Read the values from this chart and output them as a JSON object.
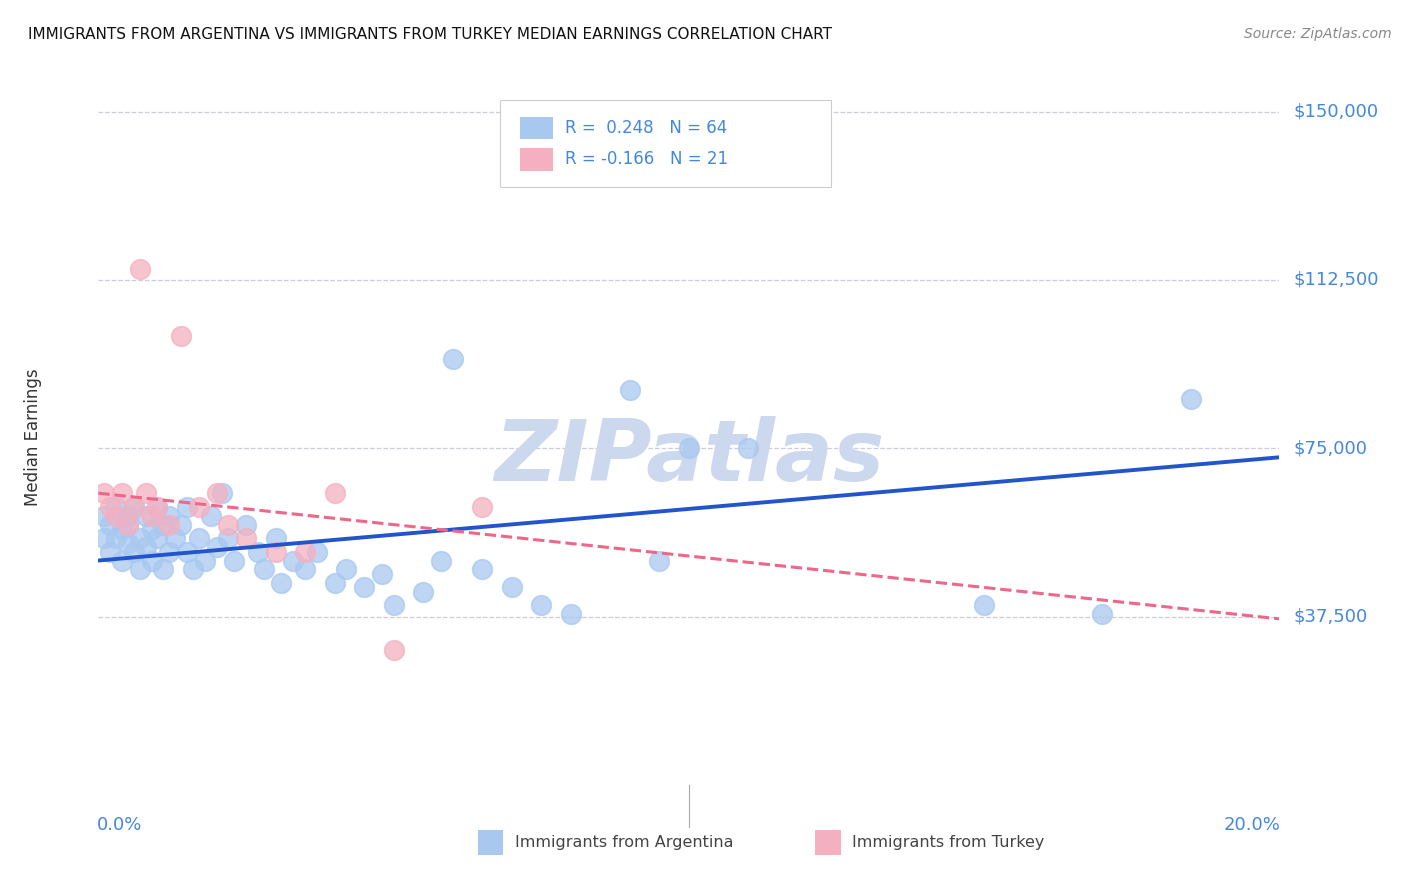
{
  "title": "IMMIGRANTS FROM ARGENTINA VS IMMIGRANTS FROM TURKEY MEDIAN EARNINGS CORRELATION CHART",
  "source": "Source: ZipAtlas.com",
  "ylabel": "Median Earnings",
  "ytick_vals": [
    0,
    37500,
    75000,
    112500,
    150000
  ],
  "ytick_labels": [
    "",
    "$37,500",
    "$75,000",
    "$112,500",
    "$150,000"
  ],
  "xlim": [
    0.0,
    0.2
  ],
  "ylim": [
    0,
    155000
  ],
  "argentina_R": 0.248,
  "argentina_N": 64,
  "turkey_R": -0.166,
  "turkey_N": 21,
  "blue_color": "#a8c8f0",
  "pink_color": "#f4b0c0",
  "blue_line_color": "#2255cc",
  "pink_line_color": "#ee6688",
  "grid_color": "#ccccdd",
  "watermark_color": "#ccd8ee",
  "axis_label_color": "#4488dd",
  "title_color": "#111111",
  "source_color": "#888888",
  "legend_border_color": "#cccccc",
  "bottom_text_color": "#444444",
  "arg_line_y0": 50000,
  "arg_line_y1": 73000,
  "turk_line_y0": 65000,
  "turk_line_y1": 37000,
  "argentina_x": [
    0.001,
    0.001,
    0.002,
    0.002,
    0.003,
    0.003,
    0.004,
    0.004,
    0.005,
    0.005,
    0.005,
    0.006,
    0.006,
    0.007,
    0.007,
    0.008,
    0.008,
    0.009,
    0.009,
    0.01,
    0.01,
    0.011,
    0.011,
    0.012,
    0.012,
    0.013,
    0.014,
    0.015,
    0.015,
    0.016,
    0.017,
    0.018,
    0.019,
    0.02,
    0.021,
    0.022,
    0.023,
    0.025,
    0.027,
    0.028,
    0.03,
    0.031,
    0.033,
    0.035,
    0.037,
    0.04,
    0.042,
    0.045,
    0.048,
    0.05,
    0.055,
    0.058,
    0.06,
    0.065,
    0.07,
    0.075,
    0.08,
    0.09,
    0.095,
    0.1,
    0.11,
    0.15,
    0.17,
    0.185
  ],
  "argentina_y": [
    55000,
    60000,
    58000,
    52000,
    62000,
    55000,
    57000,
    50000,
    60000,
    54000,
    58000,
    52000,
    62000,
    55000,
    48000,
    60000,
    53000,
    57000,
    50000,
    62000,
    55000,
    58000,
    48000,
    60000,
    52000,
    55000,
    58000,
    52000,
    62000,
    48000,
    55000,
    50000,
    60000,
    53000,
    65000,
    55000,
    50000,
    58000,
    52000,
    48000,
    55000,
    45000,
    50000,
    48000,
    52000,
    45000,
    48000,
    44000,
    47000,
    40000,
    43000,
    50000,
    95000,
    48000,
    44000,
    40000,
    38000,
    88000,
    50000,
    75000,
    75000,
    40000,
    38000,
    86000
  ],
  "turkey_x": [
    0.001,
    0.002,
    0.003,
    0.004,
    0.005,
    0.006,
    0.007,
    0.008,
    0.009,
    0.01,
    0.012,
    0.014,
    0.017,
    0.02,
    0.022,
    0.025,
    0.03,
    0.035,
    0.04,
    0.05,
    0.065
  ],
  "turkey_y": [
    65000,
    62000,
    60000,
    65000,
    58000,
    62000,
    115000,
    65000,
    60000,
    62000,
    58000,
    100000,
    62000,
    65000,
    58000,
    55000,
    52000,
    52000,
    65000,
    30000,
    62000
  ]
}
